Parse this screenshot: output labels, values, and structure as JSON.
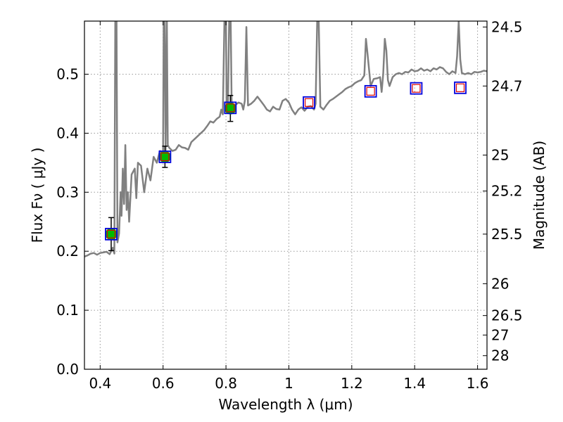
{
  "chart_data": {
    "type": "scatter",
    "xlabel": "Wavelength  λ (μm)",
    "ylabel": "Flux  Fν  ( μJy )",
    "y2label": "Magnitude (AB)",
    "xlim": [
      0.35,
      1.63
    ],
    "ylim": [
      0.0,
      0.59
    ],
    "grid": true,
    "x_ticks": [
      0.4,
      0.6,
      0.8,
      1.0,
      1.2,
      1.4,
      1.6
    ],
    "x_tick_labels": [
      "0.4",
      "0.6",
      "0.8",
      "1",
      "1.2",
      "1.4",
      "1.6"
    ],
    "y_ticks": [
      0.0,
      0.1,
      0.2,
      0.3,
      0.4,
      0.5
    ],
    "y_tick_labels": [
      "0.0",
      "0.1",
      "0.2",
      "0.3",
      "0.4",
      "0.5"
    ],
    "y2_ticks": [
      {
        "label": "24.5",
        "flux": 0.58
      },
      {
        "label": "24.7",
        "flux": 0.48
      },
      {
        "label": "25",
        "flux": 0.363
      },
      {
        "label": "25.2",
        "flux": 0.302
      },
      {
        "label": "25.5",
        "flux": 0.229
      },
      {
        "label": "26",
        "flux": 0.145
      },
      {
        "label": "26.5",
        "flux": 0.091
      },
      {
        "label": "27",
        "flux": 0.058
      },
      {
        "label": "28",
        "flux": 0.023
      }
    ],
    "colors": {
      "spectrum": "#808080",
      "photometry": "#00bb00",
      "model_outer": "#0000dd",
      "model_inner": "#dd0000",
      "errorbar": "#000000",
      "grid": "#999999"
    },
    "series": [
      {
        "kind": "spectrum",
        "points": [
          [
            0.35,
            0.191
          ],
          [
            0.36,
            0.193
          ],
          [
            0.37,
            0.196
          ],
          [
            0.38,
            0.197
          ],
          [
            0.39,
            0.194
          ],
          [
            0.4,
            0.197
          ],
          [
            0.41,
            0.198
          ],
          [
            0.42,
            0.199
          ],
          [
            0.43,
            0.195
          ],
          [
            0.435,
            0.2
          ],
          [
            0.44,
            0.206
          ],
          [
            0.445,
            0.196
          ],
          [
            0.448,
            0.59
          ],
          [
            0.452,
            0.59
          ],
          [
            0.455,
            0.215
          ],
          [
            0.46,
            0.23
          ],
          [
            0.465,
            0.3
          ],
          [
            0.468,
            0.26
          ],
          [
            0.472,
            0.34
          ],
          [
            0.476,
            0.28
          ],
          [
            0.48,
            0.38
          ],
          [
            0.484,
            0.27
          ],
          [
            0.488,
            0.3
          ],
          [
            0.492,
            0.25
          ],
          [
            0.5,
            0.33
          ],
          [
            0.51,
            0.34
          ],
          [
            0.515,
            0.29
          ],
          [
            0.52,
            0.35
          ],
          [
            0.53,
            0.345
          ],
          [
            0.54,
            0.3
          ],
          [
            0.55,
            0.34
          ],
          [
            0.56,
            0.32
          ],
          [
            0.57,
            0.36
          ],
          [
            0.58,
            0.35
          ],
          [
            0.59,
            0.37
          ],
          [
            0.6,
            0.365
          ],
          [
            0.602,
            0.59
          ],
          [
            0.605,
            0.59
          ],
          [
            0.608,
            0.37
          ],
          [
            0.612,
            0.59
          ],
          [
            0.615,
            0.38
          ],
          [
            0.62,
            0.375
          ],
          [
            0.63,
            0.37
          ],
          [
            0.64,
            0.372
          ],
          [
            0.65,
            0.38
          ],
          [
            0.66,
            0.376
          ],
          [
            0.67,
            0.375
          ],
          [
            0.68,
            0.372
          ],
          [
            0.69,
            0.385
          ],
          [
            0.7,
            0.39
          ],
          [
            0.71,
            0.395
          ],
          [
            0.72,
            0.4
          ],
          [
            0.73,
            0.405
          ],
          [
            0.74,
            0.412
          ],
          [
            0.75,
            0.42
          ],
          [
            0.76,
            0.418
          ],
          [
            0.77,
            0.424
          ],
          [
            0.78,
            0.428
          ],
          [
            0.785,
            0.44
          ],
          [
            0.79,
            0.432
          ],
          [
            0.795,
            0.59
          ],
          [
            0.8,
            0.59
          ],
          [
            0.802,
            0.445
          ],
          [
            0.806,
            0.44
          ],
          [
            0.81,
            0.59
          ],
          [
            0.815,
            0.59
          ],
          [
            0.818,
            0.455
          ],
          [
            0.82,
            0.44
          ],
          [
            0.83,
            0.448
          ],
          [
            0.84,
            0.452
          ],
          [
            0.85,
            0.45
          ],
          [
            0.855,
            0.44
          ],
          [
            0.86,
            0.455
          ],
          [
            0.865,
            0.58
          ],
          [
            0.87,
            0.447
          ],
          [
            0.88,
            0.45
          ],
          [
            0.89,
            0.455
          ],
          [
            0.9,
            0.462
          ],
          [
            0.91,
            0.455
          ],
          [
            0.92,
            0.448
          ],
          [
            0.93,
            0.44
          ],
          [
            0.94,
            0.437
          ],
          [
            0.95,
            0.445
          ],
          [
            0.96,
            0.441
          ],
          [
            0.97,
            0.44
          ],
          [
            0.98,
            0.455
          ],
          [
            0.99,
            0.458
          ],
          [
            1.0,
            0.452
          ],
          [
            1.01,
            0.44
          ],
          [
            1.02,
            0.432
          ],
          [
            1.03,
            0.44
          ],
          [
            1.04,
            0.444
          ],
          [
            1.05,
            0.438
          ],
          [
            1.06,
            0.445
          ],
          [
            1.07,
            0.446
          ],
          [
            1.08,
            0.44
          ],
          [
            1.085,
            0.45
          ],
          [
            1.09,
            0.59
          ],
          [
            1.095,
            0.59
          ],
          [
            1.1,
            0.445
          ],
          [
            1.11,
            0.44
          ],
          [
            1.12,
            0.448
          ],
          [
            1.13,
            0.455
          ],
          [
            1.14,
            0.458
          ],
          [
            1.15,
            0.462
          ],
          [
            1.16,
            0.466
          ],
          [
            1.17,
            0.47
          ],
          [
            1.18,
            0.475
          ],
          [
            1.19,
            0.478
          ],
          [
            1.2,
            0.48
          ],
          [
            1.21,
            0.485
          ],
          [
            1.22,
            0.488
          ],
          [
            1.23,
            0.49
          ],
          [
            1.24,
            0.498
          ],
          [
            1.245,
            0.56
          ],
          [
            1.25,
            0.535
          ],
          [
            1.26,
            0.48
          ],
          [
            1.27,
            0.492
          ],
          [
            1.28,
            0.493
          ],
          [
            1.29,
            0.495
          ],
          [
            1.295,
            0.47
          ],
          [
            1.3,
            0.5
          ],
          [
            1.305,
            0.56
          ],
          [
            1.31,
            0.54
          ],
          [
            1.315,
            0.49
          ],
          [
            1.32,
            0.48
          ],
          [
            1.33,
            0.495
          ],
          [
            1.34,
            0.5
          ],
          [
            1.35,
            0.502
          ],
          [
            1.36,
            0.5
          ],
          [
            1.37,
            0.504
          ],
          [
            1.38,
            0.503
          ],
          [
            1.39,
            0.508
          ],
          [
            1.4,
            0.505
          ],
          [
            1.41,
            0.506
          ],
          [
            1.42,
            0.51
          ],
          [
            1.43,
            0.506
          ],
          [
            1.44,
            0.508
          ],
          [
            1.45,
            0.505
          ],
          [
            1.46,
            0.51
          ],
          [
            1.47,
            0.508
          ],
          [
            1.48,
            0.512
          ],
          [
            1.49,
            0.51
          ],
          [
            1.5,
            0.504
          ],
          [
            1.51,
            0.5
          ],
          [
            1.52,
            0.505
          ],
          [
            1.53,
            0.502
          ],
          [
            1.535,
            0.53
          ],
          [
            1.54,
            0.59
          ],
          [
            1.545,
            0.525
          ],
          [
            1.55,
            0.502
          ],
          [
            1.56,
            0.5
          ],
          [
            1.57,
            0.502
          ],
          [
            1.58,
            0.5
          ],
          [
            1.59,
            0.504
          ],
          [
            1.6,
            0.503
          ],
          [
            1.61,
            0.504
          ],
          [
            1.62,
            0.506
          ],
          [
            1.63,
            0.505
          ]
        ]
      },
      {
        "kind": "photometry",
        "points": [
          {
            "x": 0.435,
            "y": 0.229,
            "err": 0.028
          },
          {
            "x": 0.606,
            "y": 0.36,
            "err": 0.018
          },
          {
            "x": 0.814,
            "y": 0.442,
            "err": 0.022
          }
        ]
      },
      {
        "kind": "model",
        "points": [
          {
            "x": 0.435,
            "y": 0.229
          },
          {
            "x": 0.606,
            "y": 0.36
          },
          {
            "x": 0.814,
            "y": 0.443
          },
          {
            "x": 1.064,
            "y": 0.452
          },
          {
            "x": 1.26,
            "y": 0.471
          },
          {
            "x": 1.405,
            "y": 0.476
          },
          {
            "x": 1.545,
            "y": 0.477
          }
        ]
      }
    ]
  }
}
